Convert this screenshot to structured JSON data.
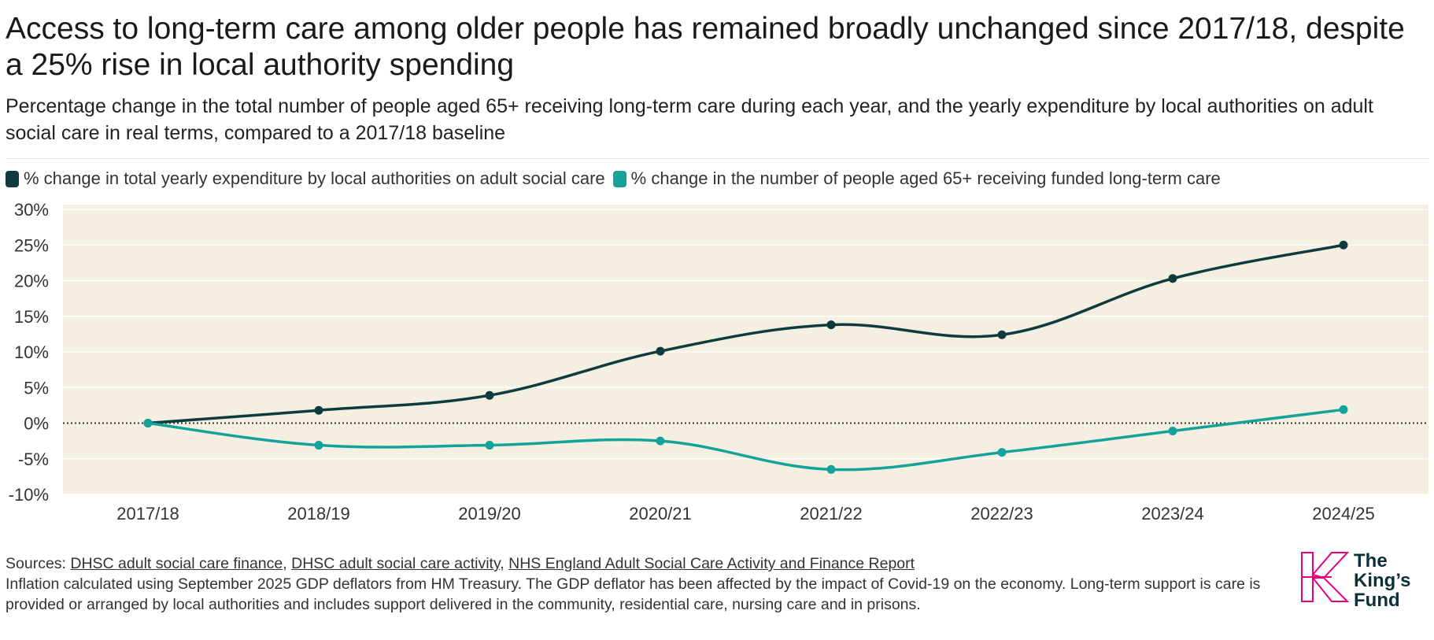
{
  "title": "Access to long-term care among older people has remained broadly unchanged since 2017/18, despite a 25% rise in local authority spending",
  "subtitle": "Percentage change in the total number of people aged 65+ receiving long-term care during each year, and the yearly expenditure by local authorities on adult social care in real terms, compared to a 2017/18 baseline",
  "colors": {
    "expenditure": "#0d3b3e",
    "care": "#14a39a",
    "plot_background": "#f5efe2",
    "baseline": "#333333",
    "logo": "#e6007e"
  },
  "chart_data": {
    "type": "line",
    "title": "",
    "xlabel": "",
    "ylabel": "",
    "categories": [
      "2017/18",
      "2018/19",
      "2019/20",
      "2020/21",
      "2021/22",
      "2022/23",
      "2023/24",
      "2024/25"
    ],
    "series": [
      {
        "name": "% change in total yearly expenditure by local authorities on adult social care",
        "values": [
          0,
          1.8,
          3.9,
          10.1,
          13.8,
          12.4,
          20.3,
          25.0
        ]
      },
      {
        "name": "% change in the number of people aged 65+ receiving funded long-term care",
        "values": [
          0,
          -3.1,
          -3.1,
          -2.5,
          -6.5,
          -4.1,
          -1.1,
          1.9
        ]
      }
    ],
    "ylim": [
      -10,
      30
    ],
    "yticks": [
      30,
      25,
      20,
      15,
      10,
      5,
      0,
      -5,
      -10
    ],
    "ytick_labels": [
      "30%",
      "25%",
      "20%",
      "15%",
      "10%",
      "5%",
      "0%",
      "-5%",
      "-10%"
    ],
    "grid": true,
    "legend_position": "top-left",
    "baseline_style": "dotted"
  },
  "footer": {
    "sources_prefix": "Sources: ",
    "source_links": [
      "DHSC adult social care finance",
      "DHSC adult social care activity",
      "NHS England Adult Social Care Activity and Finance Report"
    ],
    "separator": ", ",
    "note": "Inflation calculated using September 2025 GDP deflators from HM Treasury. The GDP deflator has been affected by the impact of Covid-19 on the economy. Long-term support is care is provided or arranged by local authorities and includes support delivered in the community, residential care, nursing care and in prisons."
  },
  "logo": {
    "line1": "The",
    "line2": "King’s",
    "line3": "Fund"
  }
}
